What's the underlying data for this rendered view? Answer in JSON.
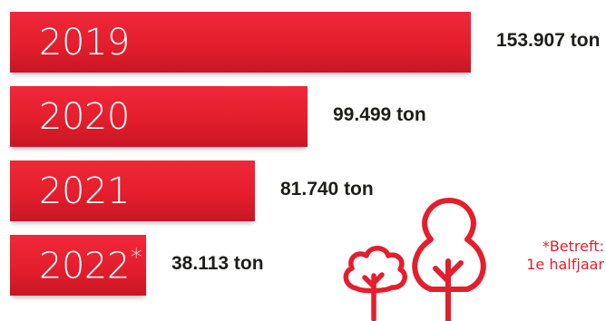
{
  "chart_data": {
    "type": "bar",
    "orientation": "horizontal",
    "categories": [
      "2019",
      "2020",
      "2021",
      "2022*"
    ],
    "values": [
      153907,
      99499,
      81740,
      38113
    ],
    "value_labels": [
      "153.907 ton",
      "99.499 ton",
      "81.740 ton",
      "38.113 ton"
    ],
    "unit": "ton",
    "bar_color": "#e41e2d",
    "grid": false,
    "legend": "none"
  },
  "footnote": {
    "line1": "*Betreft:",
    "line2": "1e halfjaar"
  },
  "colors": {
    "accent": "#e41e2d",
    "text": "#1d1d1b"
  },
  "icons": [
    "small-tree-icon",
    "large-tree-icon"
  ]
}
